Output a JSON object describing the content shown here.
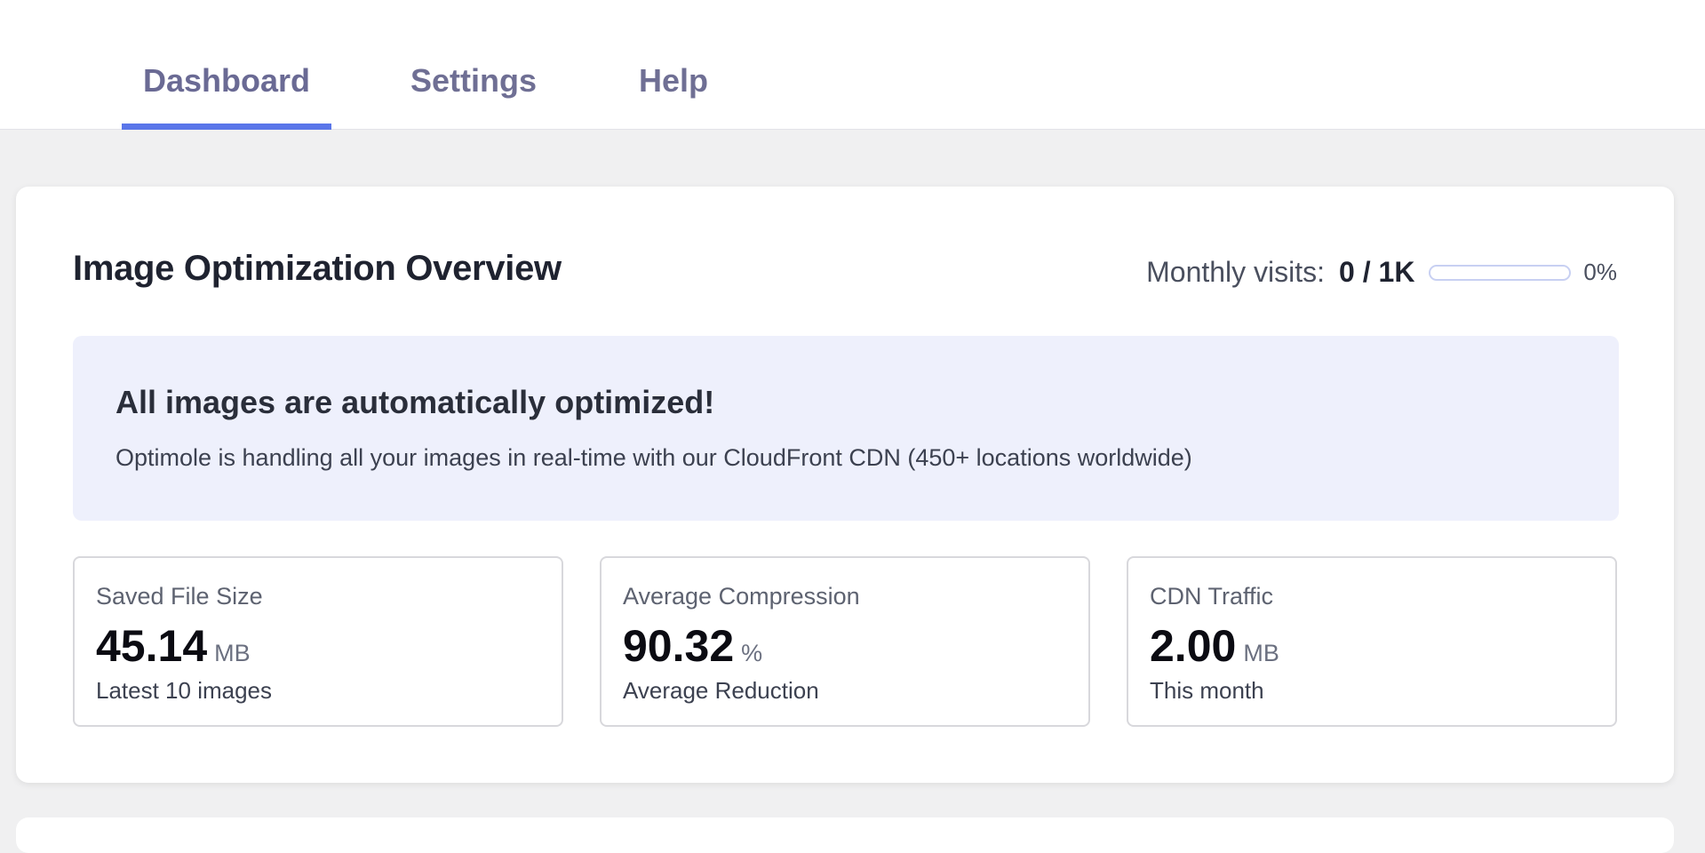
{
  "tabs": {
    "dashboard": "Dashboard",
    "settings": "Settings",
    "help": "Help"
  },
  "overview": {
    "title": "Image Optimization Overview",
    "visits_label": "Monthly visits:",
    "visits_value": "0 / 1K",
    "visits_progress_percent": 0,
    "visits_percent_label": "0%"
  },
  "notice": {
    "title": "All images are automatically optimized!",
    "text": "Optimole is handling all your images in real-time with our CloudFront CDN (450+ locations worldwide)"
  },
  "stats": [
    {
      "label": "Saved File Size",
      "value": "45.14",
      "unit": "MB",
      "sub": "Latest 10 images"
    },
    {
      "label": "Average Compression",
      "value": "90.32",
      "unit": "%",
      "sub": "Average Reduction"
    },
    {
      "label": "CDN Traffic",
      "value": "2.00",
      "unit": "MB",
      "sub": "This month"
    }
  ],
  "colors": {
    "accent": "#5a76e9",
    "notice_bg": "#eef0fc",
    "page_bg": "#f0f0f1"
  }
}
